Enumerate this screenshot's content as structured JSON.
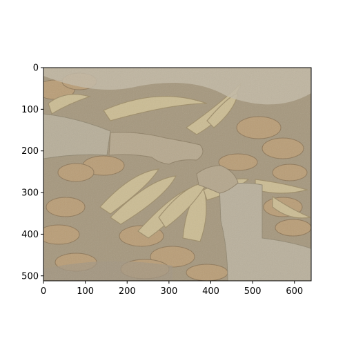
{
  "figure": {
    "image_description_icon": "bananas-and-hands-photo",
    "x_ticks": [
      "0",
      "100",
      "200",
      "300",
      "400",
      "500",
      "600"
    ],
    "y_ticks": [
      "0",
      "100",
      "200",
      "300",
      "400",
      "500"
    ]
  },
  "chart_data": {
    "type": "image",
    "xlim": [
      0,
      640
    ],
    "ylim": [
      512,
      0
    ],
    "x_tick_values": [
      0,
      100,
      200,
      300,
      400,
      500,
      600
    ],
    "y_tick_values": [
      0,
      100,
      200,
      300,
      400,
      500
    ],
    "colors": {
      "frame": "#000000",
      "background": "#ffffff",
      "photo_base": "#a89a80",
      "banana": "#c9b88f",
      "sleeve": "#b3aa95",
      "bread": "#b89a72"
    }
  }
}
